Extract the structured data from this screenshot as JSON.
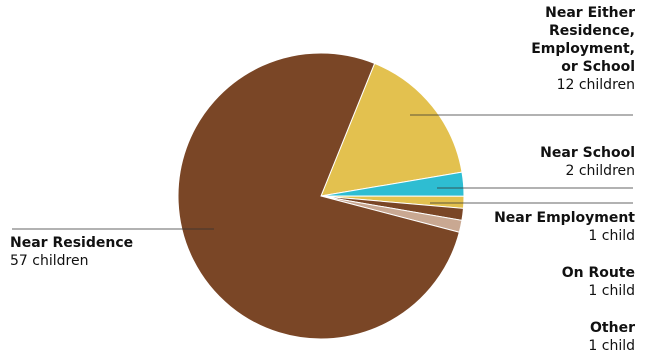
{
  "chart_data": {
    "type": "pie",
    "title": "",
    "slices": [
      {
        "key": "either",
        "name_lines": [
          "Near Either",
          "Residence,",
          "Employment,",
          "or School"
        ],
        "value_label": "12 children",
        "value": 12,
        "color": "#e3c14f"
      },
      {
        "key": "school",
        "name_lines": [
          "Near School"
        ],
        "value_label": "2 children",
        "value": 2,
        "color": "#2ebdd2"
      },
      {
        "key": "employment",
        "name_lines": [
          "Near Employment"
        ],
        "value_label": "1 child",
        "value": 1,
        "color": "#e3c14f"
      },
      {
        "key": "route",
        "name_lines": [
          "On Route"
        ],
        "value_label": "1 child",
        "value": 1,
        "color": "#7a4626"
      },
      {
        "key": "other",
        "name_lines": [
          "Other"
        ],
        "value_label": "1 child",
        "value": 1,
        "color": "#c9a892"
      },
      {
        "key": "residence",
        "name_lines": [
          "Near Residence"
        ],
        "value_label": "57 children",
        "value": 57,
        "color": "#7a4626"
      }
    ]
  }
}
